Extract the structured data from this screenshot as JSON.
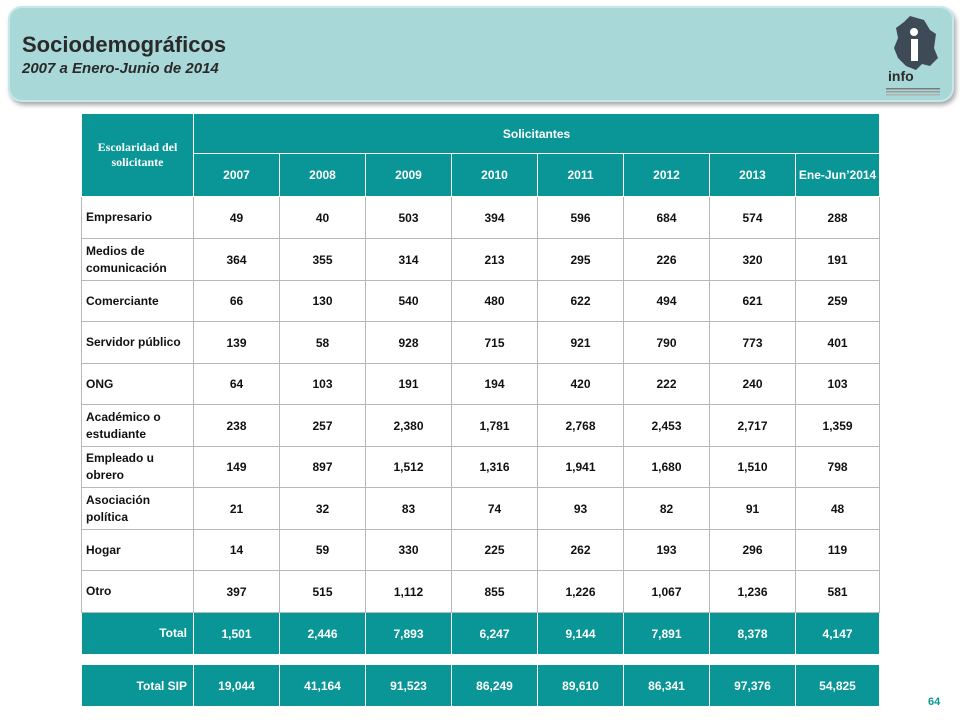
{
  "header": {
    "title": "Sociodemográficos",
    "subtitle": "2007 a Enero-Junio de 2014",
    "logo_text": "info"
  },
  "table": {
    "row_header": "Escolaridad del solicitante",
    "group_header": "Solicitantes",
    "years": [
      "2007",
      "2008",
      "2009",
      "2010",
      "2011",
      "2012",
      "2013",
      "Ene-Jun’2014"
    ],
    "rows": [
      {
        "label": "Empresario",
        "values": [
          "49",
          "40",
          "503",
          "394",
          "596",
          "684",
          "574",
          "288"
        ]
      },
      {
        "label": "Medios de comunicación",
        "values": [
          "364",
          "355",
          "314",
          "213",
          "295",
          "226",
          "320",
          "191"
        ]
      },
      {
        "label": "Comerciante",
        "values": [
          "66",
          "130",
          "540",
          "480",
          "622",
          "494",
          "621",
          "259"
        ]
      },
      {
        "label": "Servidor público",
        "values": [
          "139",
          "58",
          "928",
          "715",
          "921",
          "790",
          "773",
          "401"
        ]
      },
      {
        "label": "ONG",
        "values": [
          "64",
          "103",
          "191",
          "194",
          "420",
          "222",
          "240",
          "103"
        ]
      },
      {
        "label": "Académico o estudiante",
        "values": [
          "238",
          "257",
          "2,380",
          "1,781",
          "2,768",
          "2,453",
          "2,717",
          "1,359"
        ]
      },
      {
        "label": "Empleado u obrero",
        "values": [
          "149",
          "897",
          "1,512",
          "1,316",
          "1,941",
          "1,680",
          "1,510",
          "798"
        ]
      },
      {
        "label": "Asociación política",
        "values": [
          "21",
          "32",
          "83",
          "74",
          "93",
          "82",
          "91",
          "48"
        ]
      },
      {
        "label": "Hogar",
        "values": [
          "14",
          "59",
          "330",
          "225",
          "262",
          "193",
          "296",
          "119"
        ]
      },
      {
        "label": "Otro",
        "values": [
          "397",
          "515",
          "1,112",
          "855",
          "1,226",
          "1,067",
          "1,236",
          "581"
        ]
      }
    ],
    "total": {
      "label": "Total",
      "values": [
        "1,501",
        "2,446",
        "7,893",
        "6,247",
        "9,144",
        "7,891",
        "8,378",
        "4,147"
      ]
    }
  },
  "sip": {
    "label": "Total SIP",
    "values": [
      "19,044",
      "41,164",
      "91,523",
      "86,249",
      "89,610",
      "86,341",
      "97,376",
      "54,825"
    ]
  },
  "page_number": "64",
  "colors": {
    "accent": "#0a9696",
    "banner": "#a9d8d8"
  }
}
